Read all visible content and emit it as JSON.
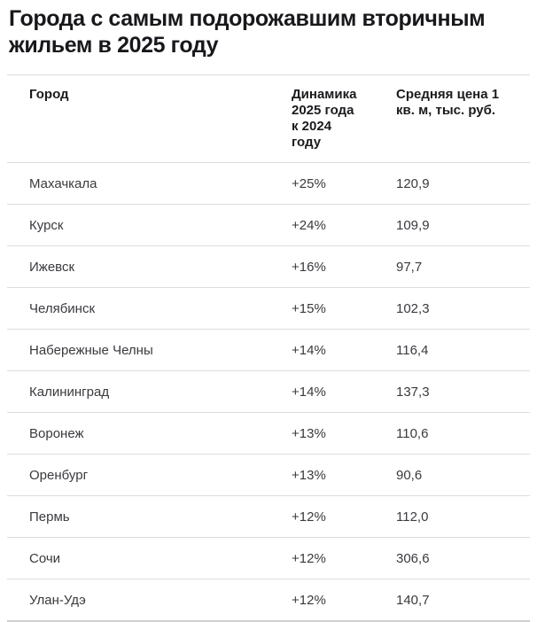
{
  "chart_data": {
    "type": "table",
    "title": "Города с самым подорожавшим вторичным жильем в 2025 году",
    "columns": [
      {
        "label": "Город"
      },
      {
        "label": "Динамика 2025 года к 2024 году"
      },
      {
        "label": "Средняя цена 1 кв. м, тыс. руб."
      }
    ],
    "rows": [
      {
        "city": "Махачкала",
        "dynamics": "+25%",
        "price": "120,9"
      },
      {
        "city": "Курск",
        "dynamics": "+24%",
        "price": "109,9"
      },
      {
        "city": "Ижевск",
        "dynamics": "+16%",
        "price": "97,7"
      },
      {
        "city": "Челябинск",
        "dynamics": "+15%",
        "price": "102,3"
      },
      {
        "city": "Набережные Челны",
        "dynamics": "+14%",
        "price": "116,4"
      },
      {
        "city": "Калининград",
        "dynamics": "+14%",
        "price": "137,3"
      },
      {
        "city": "Воронеж",
        "dynamics": "+13%",
        "price": "110,6"
      },
      {
        "city": "Оренбург",
        "dynamics": "+13%",
        "price": "90,6"
      },
      {
        "city": "Пермь",
        "dynamics": "+12%",
        "price": "112,0"
      },
      {
        "city": "Сочи",
        "dynamics": "+12%",
        "price": "306,6"
      },
      {
        "city": "Улан-Удэ",
        "dynamics": "+12%",
        "price": "140,7"
      }
    ]
  },
  "colors": {
    "background": "#ffffff",
    "title_text": "#18181c",
    "header_text": "#1b1b1f",
    "body_text": "#3a3a3f",
    "divider": "#dcdcdc",
    "bottom_border": "#cfcfcf"
  }
}
